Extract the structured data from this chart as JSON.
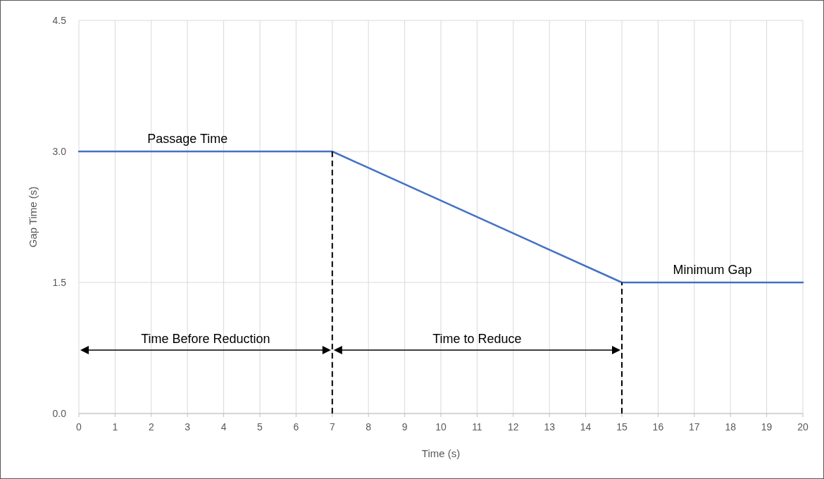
{
  "chart_data": {
    "type": "line",
    "xlabel": "Time (s)",
    "ylabel": "Gap Time (s)",
    "x": [
      0,
      7,
      15,
      20
    ],
    "series": [
      {
        "color": "#4472c4",
        "values": [
          3,
          3,
          1.5,
          1.5
        ]
      }
    ],
    "xlim": [
      0,
      20
    ],
    "xticks": [
      0,
      1,
      2,
      3,
      4,
      5,
      6,
      7,
      8,
      9,
      10,
      11,
      12,
      13,
      14,
      15,
      16,
      17,
      18,
      19,
      20
    ],
    "ylim": [
      0,
      4.5
    ],
    "yticks": [
      {
        "value": 0,
        "label": "0.0"
      },
      {
        "value": 1.5,
        "label": "1.5"
      },
      {
        "value": 3,
        "label": "3.0"
      },
      {
        "value": 4.5,
        "label": "4.5"
      }
    ],
    "grid": true,
    "marker": "none",
    "line_style": "solid",
    "ref_lines": [
      {
        "axis": "x",
        "value": 7,
        "color": "#000000",
        "line_style": "dashed"
      },
      {
        "axis": "x",
        "value": 15,
        "color": "#000000",
        "line_style": "dashed"
      }
    ],
    "annotations": [
      {
        "text": "Passage Time",
        "x": 3,
        "y": 3
      },
      {
        "text": "Minimum Gap",
        "x": 17.5,
        "y": 1.5
      },
      "Time Before Reduction",
      "Time to Reduce"
    ]
  }
}
